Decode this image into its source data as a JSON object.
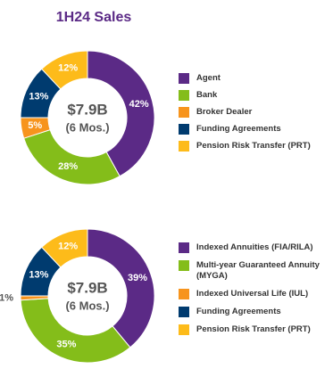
{
  "chart_data": [
    {
      "type": "pie",
      "title": "1H24 Sales",
      "annotations": [
        "$7.9B",
        "(6 Mos.)"
      ],
      "categories": [
        "Agent",
        "Bank",
        "Broker Dealer",
        "Funding Agreements",
        "Pension Risk Transfer (PRT)"
      ],
      "values": [
        42,
        28,
        5,
        13,
        12
      ],
      "value_labels": [
        "42%",
        "28%",
        "5%",
        "13%",
        "12%"
      ],
      "colors": [
        "#5b2a86",
        "#84bd1a",
        "#f7941d",
        "#003b6f",
        "#fdbb1a"
      ]
    },
    {
      "type": "pie",
      "annotations": [
        "$7.9B",
        "(6 Mos.)"
      ],
      "categories": [
        "Indexed Annuities (FIA/RILA)",
        "Multi-year Guaranteed Annuity (MYGA)",
        "Indexed Universal Life (IUL)",
        "Funding Agreements",
        "Pension Risk Transfer (PRT)"
      ],
      "values": [
        39,
        35,
        1,
        13,
        12
      ],
      "value_labels": [
        "39%",
        "35%",
        "1%",
        "13%",
        "12%"
      ],
      "colors": [
        "#5b2a86",
        "#84bd1a",
        "#f7941d",
        "#003b6f",
        "#fdbb1a"
      ]
    }
  ]
}
